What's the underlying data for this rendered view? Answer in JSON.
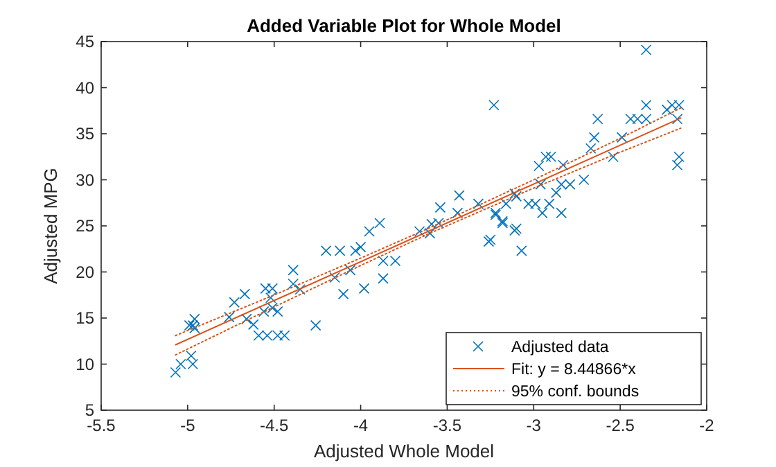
{
  "chart_data": {
    "type": "scatter",
    "title": "Added Variable Plot for Whole Model",
    "xlabel": "Adjusted Whole Model",
    "ylabel": "Adjusted MPG",
    "xlim": [
      -5.5,
      -2
    ],
    "ylim": [
      5,
      45
    ],
    "xticks": [
      -5.5,
      -5,
      -4.5,
      -4,
      -3.5,
      -3,
      -2.5,
      -2
    ],
    "yticks": [
      5,
      10,
      15,
      20,
      25,
      30,
      35,
      40,
      45
    ],
    "grid": false,
    "legend": "bottom right",
    "series": [
      {
        "name": "Adjusted data",
        "marker": "cross",
        "color": "#0072bd",
        "x": [
          -5.07,
          -5.04,
          -4.97,
          -4.98,
          -4.96,
          -4.99,
          -4.97,
          -4.96,
          -4.76,
          -4.73,
          -4.67,
          -4.66,
          -4.62,
          -4.59,
          -4.54,
          -4.48,
          -4.44,
          -4.56,
          -4.51,
          -4.52,
          -4.55,
          -4.51,
          -4.48,
          -4.39,
          -4.39,
          -4.35,
          -4.26,
          -4.2,
          -4.12,
          -4.03,
          -4.0,
          -4.15,
          -4.1,
          -4.06,
          -3.98,
          -3.87,
          -3.87,
          -3.8,
          -3.95,
          -3.89,
          -3.66,
          -3.6,
          -3.59,
          -3.55,
          -3.54,
          -3.44,
          -3.43,
          -3.32,
          -3.26,
          -3.25,
          -3.23,
          -3.22,
          -3.22,
          -3.18,
          -3.18,
          -3.16,
          -3.11,
          -3.11,
          -3.1,
          -3.1,
          -3.07,
          -3.03,
          -2.99,
          -2.97,
          -2.96,
          -2.95,
          -2.93,
          -2.91,
          -2.9,
          -2.87,
          -2.84,
          -2.84,
          -2.83,
          -2.79,
          -2.71,
          -2.67,
          -2.65,
          -2.63,
          -2.54,
          -2.49,
          -2.44,
          -2.4,
          -2.35,
          -2.35,
          -2.35,
          -2.23,
          -2.2,
          -2.17,
          -2.17,
          -2.16,
          -2.16
        ],
        "values": [
          9.1,
          10.0,
          10.0,
          10.9,
          13.9,
          14.2,
          14.2,
          14.9,
          15.1,
          16.7,
          17.6,
          14.9,
          14.3,
          13.1,
          13.1,
          13.1,
          13.1,
          15.7,
          16.1,
          17.2,
          18.2,
          18.2,
          15.7,
          20.2,
          18.7,
          18.1,
          14.2,
          22.3,
          22.3,
          22.3,
          22.7,
          19.4,
          17.6,
          20.2,
          18.2,
          19.3,
          21.2,
          21.2,
          24.4,
          25.3,
          24.4,
          24.2,
          25.2,
          25.3,
          27.0,
          26.4,
          28.3,
          27.4,
          23.3,
          23.5,
          38.1,
          26.2,
          26.4,
          25.3,
          25.5,
          27.4,
          24.5,
          28.5,
          24.7,
          28.2,
          22.3,
          27.4,
          27.4,
          31.5,
          29.5,
          26.4,
          32.5,
          27.4,
          32.5,
          28.6,
          29.5,
          26.4,
          31.6,
          29.5,
          30.0,
          33.4,
          34.6,
          36.6,
          32.5,
          34.6,
          36.6,
          36.6,
          36.6,
          38.1,
          44.1,
          37.6,
          38.1,
          36.6,
          31.6,
          32.5,
          38.1
        ]
      },
      {
        "name": "Fit: y = 8.44866*x",
        "type": "line",
        "line_style": "solid",
        "color": "#d95319",
        "x": [
          -5.07,
          -2.15
        ],
        "values": [
          12.1,
          36.7
        ]
      },
      {
        "name": "95% conf. bounds",
        "type": "line",
        "line_style": "dotted",
        "color": "#d95319",
        "x": [
          -5.07,
          -4.5,
          -4,
          -3.6,
          -3,
          -2.5,
          -2.15
        ],
        "values": [
          13.1,
          17.5,
          21.5,
          24.8,
          30.0,
          34.5,
          37.8
        ]
      },
      {
        "type": "line",
        "line_style": "dotted",
        "color": "#d95319",
        "x": [
          -5.07,
          -4.5,
          -4,
          -3.6,
          -3,
          -2.5,
          -2.15
        ],
        "values": [
          11.0,
          16.2,
          20.7,
          24.2,
          29.1,
          33.0,
          35.6
        ]
      }
    ]
  }
}
